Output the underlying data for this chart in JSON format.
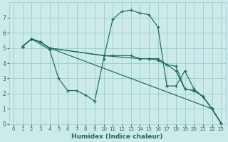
{
  "xlabel": "Humidex (Indice chaleur)",
  "bg_color": "#cceaea",
  "grid_color": "#99cccc",
  "line_color": "#1a6b5a",
  "xlim": [
    -0.5,
    23.5
  ],
  "ylim": [
    0,
    8
  ],
  "xticks": [
    0,
    1,
    2,
    3,
    4,
    5,
    6,
    7,
    8,
    9,
    10,
    11,
    12,
    13,
    14,
    15,
    16,
    17,
    18,
    19,
    20,
    21,
    22,
    23
  ],
  "yticks": [
    0,
    1,
    2,
    3,
    4,
    5,
    6,
    7
  ],
  "lines": [
    {
      "x": [
        1,
        2,
        4,
        5,
        6,
        7,
        8,
        9,
        10,
        11,
        12,
        13,
        14,
        15,
        16,
        17,
        17,
        18,
        19,
        20,
        21,
        22,
        23
      ],
      "y": [
        5.1,
        5.6,
        4.9,
        3.0,
        2.2,
        2.2,
        1.9,
        1.5,
        4.3,
        6.9,
        7.4,
        7.5,
        7.3,
        7.2,
        6.4,
        2.5,
        2.5,
        2.5,
        3.5,
        2.3,
        1.8,
        1.0,
        0.05
      ]
    },
    {
      "x": [
        1,
        2,
        3,
        4,
        10,
        11,
        13,
        14,
        15,
        16,
        17,
        18,
        19,
        20,
        21,
        22,
        23
      ],
      "y": [
        5.1,
        5.6,
        5.4,
        5.0,
        4.5,
        4.5,
        4.5,
        4.3,
        4.3,
        4.3,
        3.9,
        3.8,
        2.3,
        2.2,
        1.8,
        1.0,
        0.05
      ]
    },
    {
      "x": [
        1,
        2,
        3,
        4,
        10,
        14,
        15,
        16,
        17,
        18,
        19,
        20,
        21,
        22,
        23
      ],
      "y": [
        5.1,
        5.6,
        5.4,
        5.0,
        4.5,
        4.3,
        4.3,
        4.2,
        3.9,
        3.5,
        2.3,
        2.2,
        1.8,
        1.0,
        0.05
      ]
    },
    {
      "x": [
        1,
        2,
        3,
        4,
        22,
        23
      ],
      "y": [
        5.1,
        5.6,
        5.4,
        5.0,
        1.0,
        0.05
      ]
    }
  ]
}
